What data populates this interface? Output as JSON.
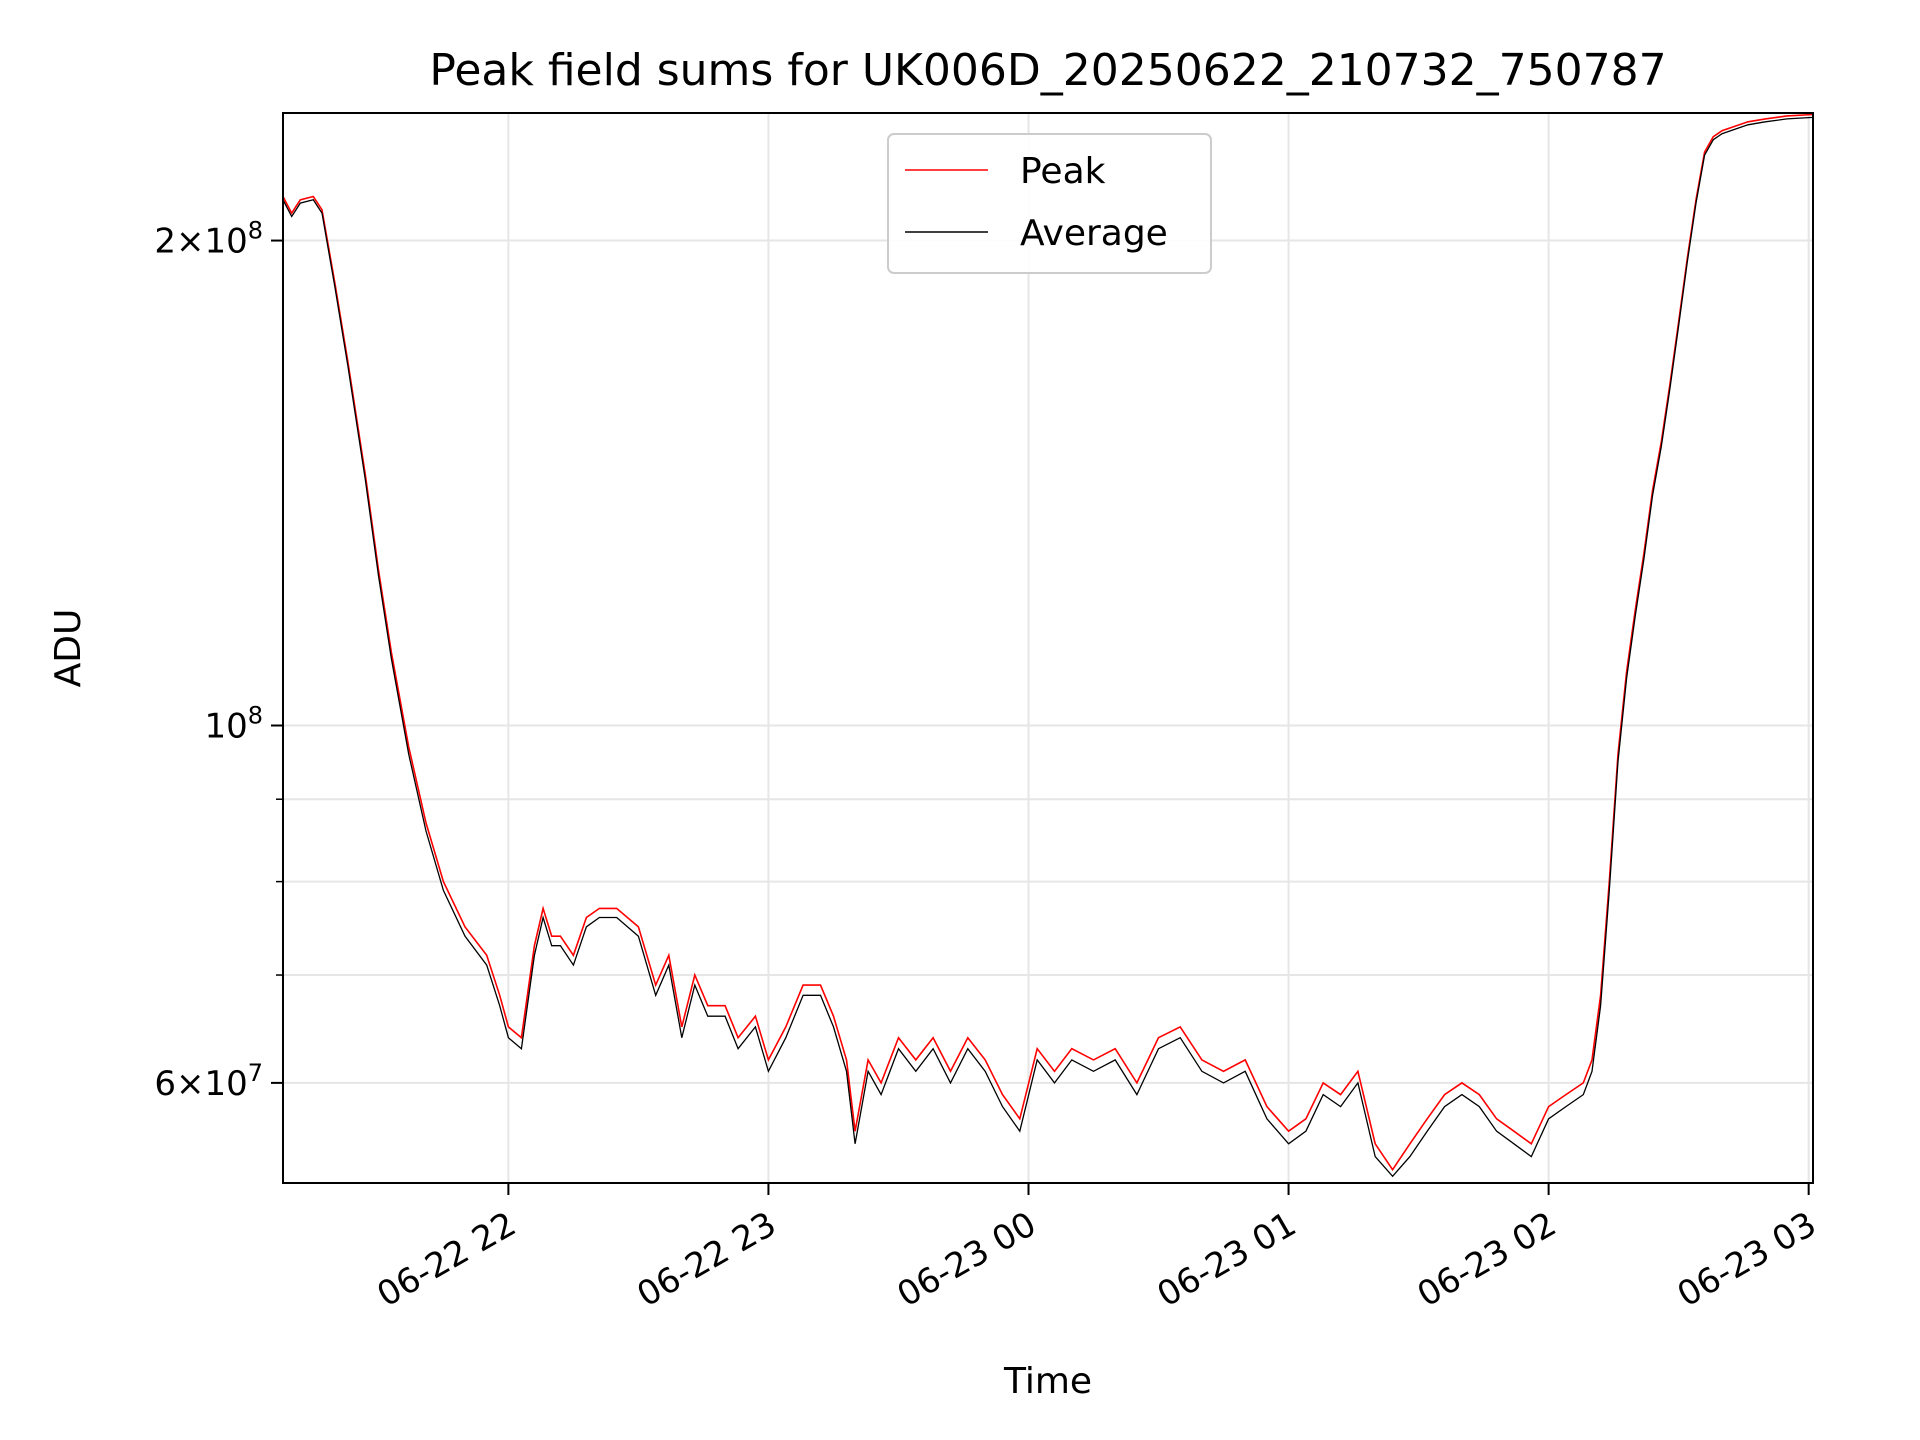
{
  "chart_data": {
    "type": "line",
    "title": "Peak field sums for UK006D_20250622_210732_750787",
    "xlabel": "Time",
    "ylabel": "ADU",
    "y_scale": "log",
    "ylim": [
      52000000,
      240000000
    ],
    "xlim": [
      "2025-06-22 21:08",
      "2025-06-23 03:01"
    ],
    "grid": true,
    "legend_position": "upper center",
    "x_ticks": [
      "06-22 22",
      "06-22 23",
      "06-23 00",
      "06-23 01",
      "06-23 02",
      "06-23 03"
    ],
    "x_tick_values": [
      "2025-06-22 22:00",
      "2025-06-22 23:00",
      "2025-06-23 00:00",
      "2025-06-23 01:00",
      "2025-06-23 02:00",
      "2025-06-23 03:00"
    ],
    "y_major_ticks": [
      {
        "label_base": "6",
        "label_exp": "7",
        "show_multiplier": true,
        "value": 60000000
      },
      {
        "label_base": "",
        "label_exp": "8",
        "show_multiplier": false,
        "value": 100000000
      },
      {
        "label_base": "2",
        "label_exp": "8",
        "show_multiplier": true,
        "value": 200000000
      }
    ],
    "y_minor_ticks": [
      70000000,
      80000000,
      90000000
    ],
    "series": [
      {
        "name": "Peak",
        "color": "#ff0000",
        "x": [
          "2025-06-22 21:08",
          "2025-06-22 21:10",
          "2025-06-22 21:12",
          "2025-06-22 21:15",
          "2025-06-22 21:17",
          "2025-06-22 21:20",
          "2025-06-22 21:23",
          "2025-06-22 21:27",
          "2025-06-22 21:30",
          "2025-06-22 21:33",
          "2025-06-22 21:37",
          "2025-06-22 21:41",
          "2025-06-22 21:45",
          "2025-06-22 21:50",
          "2025-06-22 21:55",
          "2025-06-22 21:58",
          "2025-06-22 22:00",
          "2025-06-22 22:03",
          "2025-06-22 22:06",
          "2025-06-22 22:08",
          "2025-06-22 22:10",
          "2025-06-22 22:12",
          "2025-06-22 22:15",
          "2025-06-22 22:18",
          "2025-06-22 22:21",
          "2025-06-22 22:25",
          "2025-06-22 22:30",
          "2025-06-22 22:34",
          "2025-06-22 22:37",
          "2025-06-22 22:40",
          "2025-06-22 22:43",
          "2025-06-22 22:46",
          "2025-06-22 22:50",
          "2025-06-22 22:53",
          "2025-06-22 22:57",
          "2025-06-22 23:00",
          "2025-06-22 23:04",
          "2025-06-22 23:08",
          "2025-06-22 23:12",
          "2025-06-22 23:15",
          "2025-06-22 23:18",
          "2025-06-22 23:20",
          "2025-06-22 23:23",
          "2025-06-22 23:26",
          "2025-06-22 23:30",
          "2025-06-22 23:34",
          "2025-06-22 23:38",
          "2025-06-22 23:42",
          "2025-06-22 23:46",
          "2025-06-22 23:50",
          "2025-06-22 23:54",
          "2025-06-22 23:58",
          "2025-06-23 00:02",
          "2025-06-23 00:06",
          "2025-06-23 00:10",
          "2025-06-23 00:15",
          "2025-06-23 00:20",
          "2025-06-23 00:25",
          "2025-06-23 00:30",
          "2025-06-23 00:35",
          "2025-06-23 00:40",
          "2025-06-23 00:45",
          "2025-06-23 00:50",
          "2025-06-23 00:55",
          "2025-06-23 01:00",
          "2025-06-23 01:04",
          "2025-06-23 01:08",
          "2025-06-23 01:12",
          "2025-06-23 01:16",
          "2025-06-23 01:20",
          "2025-06-23 01:24",
          "2025-06-23 01:28",
          "2025-06-23 01:32",
          "2025-06-23 01:36",
          "2025-06-23 01:40",
          "2025-06-23 01:44",
          "2025-06-23 01:48",
          "2025-06-23 01:52",
          "2025-06-23 01:56",
          "2025-06-23 02:00",
          "2025-06-23 02:04",
          "2025-06-23 02:08",
          "2025-06-23 02:10",
          "2025-06-23 02:12",
          "2025-06-23 02:14",
          "2025-06-23 02:16",
          "2025-06-23 02:18",
          "2025-06-23 02:20",
          "2025-06-23 02:22",
          "2025-06-23 02:24",
          "2025-06-23 02:26",
          "2025-06-23 02:28",
          "2025-06-23 02:30",
          "2025-06-23 02:32",
          "2025-06-23 02:34",
          "2025-06-23 02:36",
          "2025-06-23 02:38",
          "2025-06-23 02:40",
          "2025-06-23 02:42",
          "2025-06-23 02:44",
          "2025-06-23 02:46",
          "2025-06-23 02:50",
          "2025-06-23 02:55",
          "2025-06-23 03:01"
        ],
        "values": [
          213000000,
          208000000,
          212000000,
          213000000,
          209000000,
          188000000,
          168000000,
          143000000,
          125000000,
          111000000,
          97000000,
          87000000,
          80000000,
          75000000,
          72000000,
          68000000,
          65000000,
          64000000,
          73000000,
          77000000,
          74000000,
          74000000,
          72000000,
          76000000,
          77000000,
          77000000,
          75000000,
          69000000,
          72000000,
          65000000,
          70000000,
          67000000,
          67000000,
          64000000,
          66000000,
          62000000,
          65000000,
          69000000,
          69000000,
          66000000,
          62000000,
          56000000,
          62000000,
          60000000,
          64000000,
          62000000,
          64000000,
          61000000,
          64000000,
          62000000,
          59000000,
          57000000,
          63000000,
          61000000,
          63000000,
          62000000,
          63000000,
          60000000,
          64000000,
          65000000,
          62000000,
          61000000,
          62000000,
          58000000,
          56000000,
          57000000,
          60000000,
          59000000,
          61000000,
          55000000,
          53000000,
          55000000,
          57000000,
          59000000,
          60000000,
          59000000,
          57000000,
          56000000,
          55000000,
          58000000,
          59000000,
          60000000,
          62000000,
          68000000,
          80000000,
          96000000,
          108000000,
          118000000,
          128000000,
          140000000,
          150000000,
          163000000,
          178000000,
          195000000,
          212000000,
          227000000,
          232000000,
          234000000,
          235000000,
          236000000,
          237000000,
          238000000,
          239000000,
          239500000
        ]
      },
      {
        "name": "Average",
        "color": "#000000",
        "x": [
          "2025-06-22 21:08",
          "2025-06-22 21:10",
          "2025-06-22 21:12",
          "2025-06-22 21:15",
          "2025-06-22 21:17",
          "2025-06-22 21:20",
          "2025-06-22 21:23",
          "2025-06-22 21:27",
          "2025-06-22 21:30",
          "2025-06-22 21:33",
          "2025-06-22 21:37",
          "2025-06-22 21:41",
          "2025-06-22 21:45",
          "2025-06-22 21:50",
          "2025-06-22 21:55",
          "2025-06-22 21:58",
          "2025-06-22 22:00",
          "2025-06-22 22:03",
          "2025-06-22 22:06",
          "2025-06-22 22:08",
          "2025-06-22 22:10",
          "2025-06-22 22:12",
          "2025-06-22 22:15",
          "2025-06-22 22:18",
          "2025-06-22 22:21",
          "2025-06-22 22:25",
          "2025-06-22 22:30",
          "2025-06-22 22:34",
          "2025-06-22 22:37",
          "2025-06-22 22:40",
          "2025-06-22 22:43",
          "2025-06-22 22:46",
          "2025-06-22 22:50",
          "2025-06-22 22:53",
          "2025-06-22 22:57",
          "2025-06-22 23:00",
          "2025-06-22 23:04",
          "2025-06-22 23:08",
          "2025-06-22 23:12",
          "2025-06-22 23:15",
          "2025-06-22 23:18",
          "2025-06-22 23:20",
          "2025-06-22 23:23",
          "2025-06-22 23:26",
          "2025-06-22 23:30",
          "2025-06-22 23:34",
          "2025-06-22 23:38",
          "2025-06-22 23:42",
          "2025-06-22 23:46",
          "2025-06-22 23:50",
          "2025-06-22 23:54",
          "2025-06-22 23:58",
          "2025-06-23 00:02",
          "2025-06-23 00:06",
          "2025-06-23 00:10",
          "2025-06-23 00:15",
          "2025-06-23 00:20",
          "2025-06-23 00:25",
          "2025-06-23 00:30",
          "2025-06-23 00:35",
          "2025-06-23 00:40",
          "2025-06-23 00:45",
          "2025-06-23 00:50",
          "2025-06-23 00:55",
          "2025-06-23 01:00",
          "2025-06-23 01:04",
          "2025-06-23 01:08",
          "2025-06-23 01:12",
          "2025-06-23 01:16",
          "2025-06-23 01:20",
          "2025-06-23 01:24",
          "2025-06-23 01:28",
          "2025-06-23 01:32",
          "2025-06-23 01:36",
          "2025-06-23 01:40",
          "2025-06-23 01:44",
          "2025-06-23 01:48",
          "2025-06-23 01:52",
          "2025-06-23 01:56",
          "2025-06-23 02:00",
          "2025-06-23 02:04",
          "2025-06-23 02:08",
          "2025-06-23 02:10",
          "2025-06-23 02:12",
          "2025-06-23 02:14",
          "2025-06-23 02:16",
          "2025-06-23 02:18",
          "2025-06-23 02:20",
          "2025-06-23 02:22",
          "2025-06-23 02:24",
          "2025-06-23 02:26",
          "2025-06-23 02:28",
          "2025-06-23 02:30",
          "2025-06-23 02:32",
          "2025-06-23 02:34",
          "2025-06-23 02:36",
          "2025-06-23 02:38",
          "2025-06-23 02:40",
          "2025-06-23 02:42",
          "2025-06-23 02:44",
          "2025-06-23 02:46",
          "2025-06-23 02:50",
          "2025-06-23 02:55",
          "2025-06-23 03:01"
        ],
        "values": [
          212000000,
          207000000,
          211000000,
          212000000,
          208000000,
          187000000,
          167000000,
          142000000,
          124000000,
          110000000,
          96000000,
          86000000,
          79000000,
          74000000,
          71000000,
          67000000,
          64000000,
          63000000,
          72000000,
          76000000,
          73000000,
          73000000,
          71000000,
          75000000,
          76000000,
          76000000,
          74000000,
          68000000,
          71000000,
          64000000,
          69000000,
          66000000,
          66000000,
          63000000,
          65000000,
          61000000,
          64000000,
          68000000,
          68000000,
          65000000,
          61000000,
          55000000,
          61000000,
          59000000,
          63000000,
          61000000,
          63000000,
          60000000,
          63000000,
          61000000,
          58000000,
          56000000,
          62000000,
          60000000,
          62000000,
          61000000,
          62000000,
          59000000,
          63000000,
          64000000,
          61000000,
          60000000,
          61000000,
          57000000,
          55000000,
          56000000,
          59000000,
          58000000,
          60000000,
          54000000,
          52500000,
          54000000,
          56000000,
          58000000,
          59000000,
          58000000,
          56000000,
          55000000,
          54000000,
          57000000,
          58000000,
          59000000,
          61000000,
          67000000,
          79000000,
          95000000,
          107000000,
          117000000,
          127000000,
          139000000,
          149000000,
          162000000,
          177000000,
          194000000,
          211000000,
          226000000,
          231000000,
          233000000,
          234000000,
          235000000,
          236000000,
          237000000,
          238000000,
          238500000
        ]
      }
    ]
  }
}
